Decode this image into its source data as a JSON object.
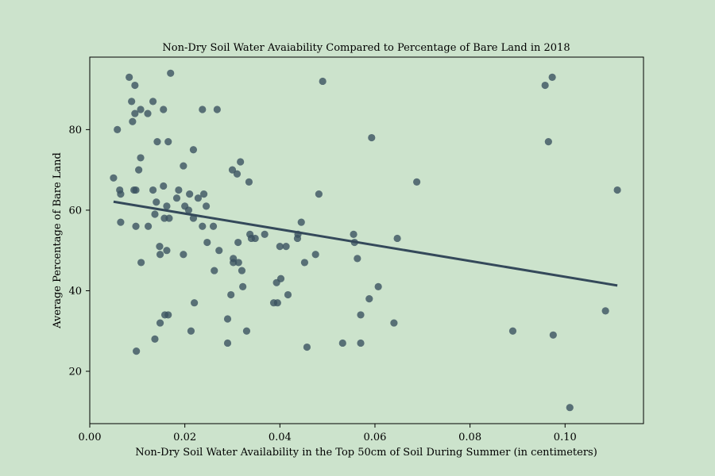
{
  "chart_data": {
    "type": "scatter",
    "title": "Non-Dry Soil Water Avaiability Compared to Percentage of Bare Land in 2018",
    "xlabel": "Non-Dry Soil Water Availability in the Top 50cm of Soil During Summer (in centimeters)",
    "ylabel": "Average Percentage of Bare Land",
    "xlim": [
      0.0,
      0.1165
    ],
    "ylim": [
      7,
      98
    ],
    "xticks": [
      "0.00",
      "0.02",
      "0.04",
      "0.06",
      "0.08",
      "0.10"
    ],
    "yticks": [
      "20",
      "40",
      "60",
      "80"
    ],
    "grid": false,
    "point_color": "#3b5260",
    "line_color": "#34495a",
    "background": "#cce3cc",
    "trendline": {
      "x": [
        0.005,
        0.111
      ],
      "y": [
        62.1,
        41.3
      ]
    },
    "points": [
      [
        0.005,
        68
      ],
      [
        0.0058,
        80
      ],
      [
        0.0063,
        65
      ],
      [
        0.0065,
        64
      ],
      [
        0.0065,
        57
      ],
      [
        0.0083,
        93
      ],
      [
        0.0088,
        87
      ],
      [
        0.009,
        82
      ],
      [
        0.0093,
        65
      ],
      [
        0.0095,
        91
      ],
      [
        0.0095,
        84
      ],
      [
        0.0097,
        65
      ],
      [
        0.0097,
        56
      ],
      [
        0.0098,
        25
      ],
      [
        0.0103,
        70
      ],
      [
        0.0107,
        85
      ],
      [
        0.0107,
        73
      ],
      [
        0.0108,
        47
      ],
      [
        0.0122,
        84
      ],
      [
        0.0123,
        56
      ],
      [
        0.0133,
        87
      ],
      [
        0.0133,
        65
      ],
      [
        0.0137,
        59
      ],
      [
        0.0137,
        28
      ],
      [
        0.014,
        62
      ],
      [
        0.0142,
        77
      ],
      [
        0.0147,
        51
      ],
      [
        0.0148,
        49
      ],
      [
        0.0148,
        32
      ],
      [
        0.0155,
        85
      ],
      [
        0.0155,
        66
      ],
      [
        0.0157,
        58
      ],
      [
        0.0158,
        34
      ],
      [
        0.0162,
        61
      ],
      [
        0.0162,
        50
      ],
      [
        0.0165,
        77
      ],
      [
        0.0165,
        34
      ],
      [
        0.0167,
        58
      ],
      [
        0.017,
        94
      ],
      [
        0.0183,
        63
      ],
      [
        0.0187,
        65
      ],
      [
        0.0197,
        71
      ],
      [
        0.0197,
        49
      ],
      [
        0.02,
        61
      ],
      [
        0.0208,
        60
      ],
      [
        0.021,
        64
      ],
      [
        0.0213,
        30
      ],
      [
        0.0218,
        75
      ],
      [
        0.0218,
        58
      ],
      [
        0.022,
        37
      ],
      [
        0.0228,
        63
      ],
      [
        0.0237,
        85
      ],
      [
        0.0237,
        56
      ],
      [
        0.024,
        64
      ],
      [
        0.0245,
        61
      ],
      [
        0.0247,
        52
      ],
      [
        0.026,
        56
      ],
      [
        0.0262,
        45
      ],
      [
        0.0268,
        85
      ],
      [
        0.0272,
        50
      ],
      [
        0.029,
        33
      ],
      [
        0.029,
        27
      ],
      [
        0.0297,
        39
      ],
      [
        0.03,
        70
      ],
      [
        0.0302,
        48
      ],
      [
        0.0302,
        47
      ],
      [
        0.031,
        69
      ],
      [
        0.0312,
        52
      ],
      [
        0.0313,
        47
      ],
      [
        0.0317,
        72
      ],
      [
        0.032,
        45
      ],
      [
        0.0322,
        41
      ],
      [
        0.033,
        30
      ],
      [
        0.0335,
        67
      ],
      [
        0.0337,
        54
      ],
      [
        0.034,
        53
      ],
      [
        0.0348,
        53
      ],
      [
        0.0368,
        54
      ],
      [
        0.0387,
        37
      ],
      [
        0.0393,
        42
      ],
      [
        0.0395,
        37
      ],
      [
        0.04,
        51
      ],
      [
        0.0402,
        43
      ],
      [
        0.0413,
        51
      ],
      [
        0.0417,
        39
      ],
      [
        0.0437,
        53
      ],
      [
        0.0438,
        54
      ],
      [
        0.0445,
        57
      ],
      [
        0.0452,
        47
      ],
      [
        0.0457,
        26
      ],
      [
        0.0475,
        49
      ],
      [
        0.0482,
        64
      ],
      [
        0.049,
        92
      ],
      [
        0.0532,
        27
      ],
      [
        0.0555,
        54
      ],
      [
        0.0557,
        52
      ],
      [
        0.0563,
        48
      ],
      [
        0.057,
        34
      ],
      [
        0.057,
        27
      ],
      [
        0.0588,
        38
      ],
      [
        0.0593,
        78
      ],
      [
        0.0607,
        41
      ],
      [
        0.064,
        32
      ],
      [
        0.0647,
        53
      ],
      [
        0.0688,
        67
      ],
      [
        0.089,
        30
      ],
      [
        0.0958,
        91
      ],
      [
        0.0965,
        77
      ],
      [
        0.0973,
        93
      ],
      [
        0.0975,
        29
      ],
      [
        0.101,
        11
      ],
      [
        0.1085,
        35
      ],
      [
        0.111,
        65
      ]
    ]
  }
}
